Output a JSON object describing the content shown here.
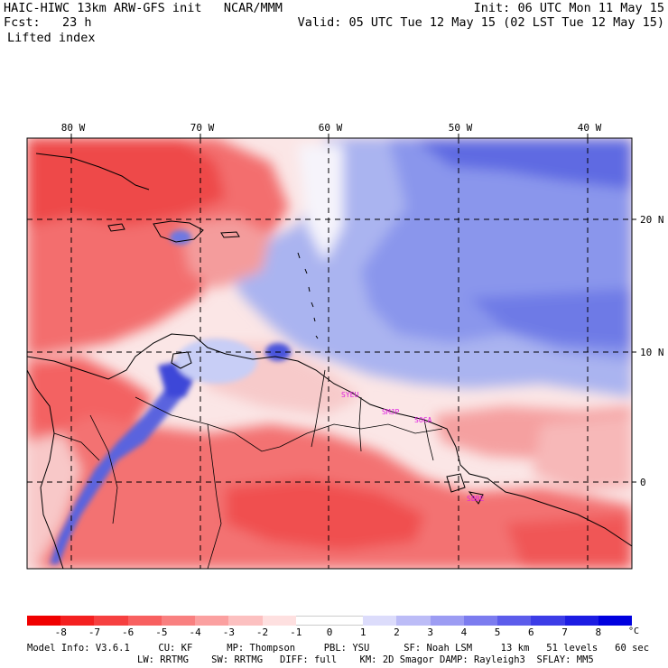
{
  "header": {
    "model_line": "HAIC-HIWC 13km ARW-GFS init   NCAR/MMM",
    "fcst_line": "Fcst:   23 h",
    "field_name": "Lifted index",
    "init_line": "Init: 06 UTC Mon 11 May 15",
    "valid_line": "Valid: 05 UTC Tue 12 May 15 (02 LST Tue 12 May 15)"
  },
  "map": {
    "lon_labels": [
      "80 W",
      "70 W",
      "60 W",
      "50 W",
      "40 W"
    ],
    "lat_labels": [
      "20 N",
      "10 N",
      "0"
    ],
    "station_labels": [
      "SYEU",
      "SMJP",
      "SOCA",
      "SBBE"
    ],
    "station_color": "#e020e0",
    "colors": {
      "strong_red": "#f03c3c",
      "red": "#f46e6e",
      "light_red": "#f8a8a8",
      "pale": "#fbe2e2",
      "white": "#ffffff",
      "pale_blue": "#d6dcf8",
      "light_blue": "#aab4f0",
      "blue": "#7c88e8",
      "deep_blue": "#4a54dc"
    }
  },
  "legend": {
    "ticks": [
      "-8",
      "-7",
      "-6",
      "-5",
      "-4",
      "-3",
      "-2",
      "-1",
      "0",
      "1",
      "2",
      "3",
      "4",
      "5",
      "6",
      "7",
      "8"
    ],
    "unit": "°C",
    "colors": [
      "#f00000",
      "#f42020",
      "#f64040",
      "#f86060",
      "#f98080",
      "#fba0a0",
      "#fcc0c0",
      "#fee0e0",
      "#ffffff",
      "#ffffff",
      "#dcdcfb",
      "#bcbcf7",
      "#9c9cf3",
      "#7c7cef",
      "#5c5ceb",
      "#3c3ce7",
      "#1c1ce3",
      "#0000df"
    ]
  },
  "footer": {
    "line1": "Model Info: V3.6.1     CU: KF      MP: Thompson     PBL: YSU      SF: Noah LSM     13 km   51 levels   60 sec",
    "line2": "LW: RRTMG    SW: RRTMG   DIFF: full    KM: 2D Smagor DAMP: Rayleigh3  SFLAY: MM5"
  }
}
